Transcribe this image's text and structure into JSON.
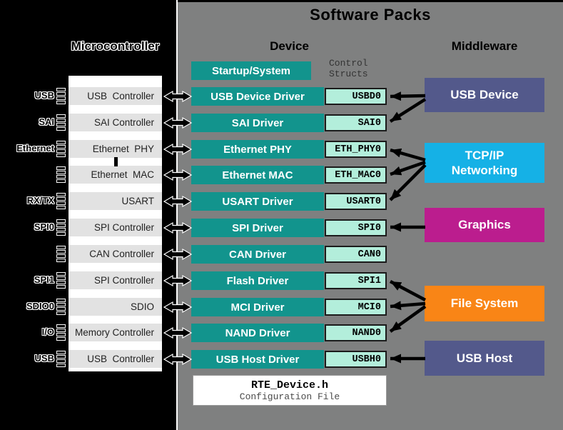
{
  "title": "Software Packs",
  "headers": {
    "microcontroller": "Microcontroller",
    "device": "Device",
    "middleware": "Middleware",
    "control_structs": "Control Structs"
  },
  "colors": {
    "background": "#000000",
    "panel_gray": "#7f8080",
    "driver_teal": "#12948d",
    "struct_mint": "#b3eedb",
    "middleware_slate": "#53598b",
    "middleware_cyan": "#15b1e6",
    "middleware_magenta": "#bb1d8e",
    "middleware_orange": "#f98516",
    "chip_row_gray": "#e2e2e2"
  },
  "microcontroller": {
    "rows": [
      {
        "label": "USB  Controller",
        "pin_label": "USB"
      },
      {
        "label": "SAI Controller",
        "pin_label": "SAI"
      },
      {
        "label": "Ethernet  PHY",
        "pin_label": "Ethernet"
      },
      {
        "label": "Ethernet  MAC",
        "pin_label": ""
      },
      {
        "label": "USART",
        "pin_label": "RX/TX"
      },
      {
        "label": "SPI Controller",
        "pin_label": "SPI0"
      },
      {
        "label": "CAN Controller",
        "pin_label": ""
      },
      {
        "label": "SPI Controller",
        "pin_label": "SPI1"
      },
      {
        "label": "SDIO",
        "pin_label": "SDIO0"
      },
      {
        "label": "Memory Controller",
        "pin_label": "I/O"
      },
      {
        "label": "USB  Controller",
        "pin_label": "USB"
      }
    ]
  },
  "device": {
    "startup": "Startup/System",
    "drivers": [
      {
        "name": "USB Device Driver",
        "struct": "USBD0"
      },
      {
        "name": "SAI Driver",
        "struct": "SAI0"
      },
      {
        "name": "Ethernet PHY",
        "struct": "ETH_PHY0"
      },
      {
        "name": "Ethernet MAC",
        "struct": "ETH_MAC0"
      },
      {
        "name": "USART Driver",
        "struct": "USART0"
      },
      {
        "name": "SPI Driver",
        "struct": "SPI0"
      },
      {
        "name": "CAN Driver",
        "struct": "CAN0"
      },
      {
        "name": "Flash Driver",
        "struct": "SPI1"
      },
      {
        "name": "MCI Driver",
        "struct": "MCI0"
      },
      {
        "name": "NAND Driver",
        "struct": "NAND0"
      },
      {
        "name": "USB Host Driver",
        "struct": "USBH0"
      }
    ]
  },
  "middleware": {
    "components": [
      {
        "name": "USB Device",
        "color": "#53598b",
        "targets": [
          "USBD0",
          "SAI0"
        ]
      },
      {
        "name": "TCP/IP Networking",
        "color": "#15b1e6",
        "targets": [
          "ETH_PHY0",
          "ETH_MAC0",
          "USART0"
        ]
      },
      {
        "name": "Graphics",
        "color": "#bb1d8e",
        "targets": [
          "SPI0"
        ]
      },
      {
        "name": "File System",
        "color": "#f98516",
        "targets": [
          "SPI1",
          "MCI0",
          "NAND0"
        ]
      },
      {
        "name": "USB Host",
        "color": "#53598b",
        "targets": [
          "USBH0"
        ]
      }
    ]
  },
  "rte": {
    "filename": "RTE_Device.h",
    "subtitle": "Configuration File"
  }
}
